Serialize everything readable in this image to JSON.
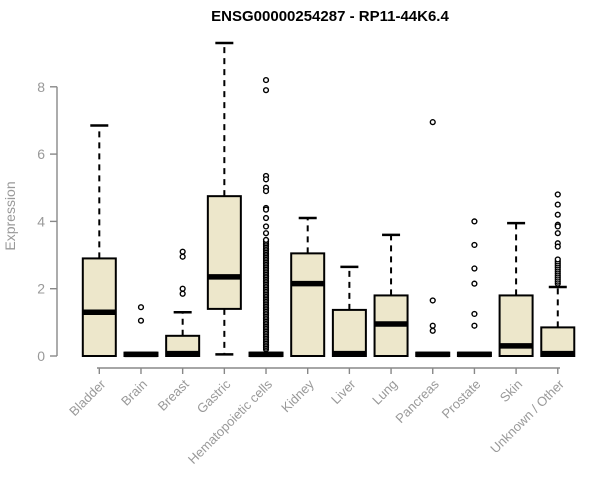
{
  "page": {
    "background": "#ffffff"
  },
  "chart_data": {
    "type": "boxplot",
    "title": "ENSG00000254287 - RP11-44K6.4",
    "ylabel": "Expression",
    "xlabel": "",
    "ylim": [
      0,
      9.4
    ],
    "yticks": [
      0,
      2,
      4,
      6,
      8
    ],
    "grid": false,
    "legend": null,
    "categories": [
      "Bladder",
      "Brain",
      "Breast",
      "Gastric",
      "Hematopoietic cells",
      "Kidney",
      "Liver",
      "Lung",
      "Pancreas",
      "Prostate",
      "Skin",
      "Unknown / Other"
    ],
    "boxes": [
      {
        "category": "Bladder",
        "whisker_low": 0,
        "q1": 0,
        "median": 1.3,
        "q3": 2.9,
        "whisker_high": 6.85,
        "outliers": [],
        "outlier_bands": []
      },
      {
        "category": "Brain",
        "whisker_low": 0,
        "q1": 0,
        "median": 0.05,
        "q3": 0.1,
        "whisker_high": 0.1,
        "outliers": [
          1.45,
          1.05
        ],
        "outlier_bands": []
      },
      {
        "category": "Breast",
        "whisker_low": 0,
        "q1": 0,
        "median": 0.07,
        "q3": 0.6,
        "whisker_high": 1.3,
        "outliers": [
          3.1,
          2.95,
          2.0,
          1.85
        ],
        "outlier_bands": []
      },
      {
        "category": "Gastric",
        "whisker_low": 0.05,
        "q1": 1.4,
        "median": 2.35,
        "q3": 4.75,
        "whisker_high": 9.3,
        "outliers": [],
        "outlier_bands": []
      },
      {
        "category": "Hematopoietic cells",
        "whisker_low": 0,
        "q1": 0,
        "median": 0.05,
        "q3": 0.1,
        "whisker_high": 0.15,
        "outliers": [
          8.2,
          7.9,
          5.35,
          5.25,
          5.0,
          4.9,
          4.4,
          4.35,
          4.1,
          3.85,
          3.65
        ],
        "outlier_bands": [
          {
            "from": 0.2,
            "to": 3.45,
            "step": 0.05
          }
        ]
      },
      {
        "category": "Kidney",
        "whisker_low": 0,
        "q1": 0,
        "median": 2.15,
        "q3": 3.05,
        "whisker_high": 4.1,
        "outliers": [],
        "outlier_bands": []
      },
      {
        "category": "Liver",
        "whisker_low": 0,
        "q1": 0,
        "median": 0.07,
        "q3": 1.37,
        "whisker_high": 2.65,
        "outliers": [],
        "outlier_bands": []
      },
      {
        "category": "Lung",
        "whisker_low": 0,
        "q1": 0,
        "median": 0.95,
        "q3": 1.8,
        "whisker_high": 3.6,
        "outliers": [],
        "outlier_bands": []
      },
      {
        "category": "Pancreas",
        "whisker_low": 0,
        "q1": 0,
        "median": 0.05,
        "q3": 0.1,
        "whisker_high": 0.1,
        "outliers": [
          6.95,
          1.65,
          0.9,
          0.75
        ],
        "outlier_bands": []
      },
      {
        "category": "Prostate",
        "whisker_low": 0,
        "q1": 0,
        "median": 0.05,
        "q3": 0.1,
        "whisker_high": 0.1,
        "outliers": [
          4.0,
          3.3,
          2.6,
          2.15,
          1.25,
          0.9
        ],
        "outlier_bands": []
      },
      {
        "category": "Skin",
        "whisker_low": 0,
        "q1": 0,
        "median": 0.3,
        "q3": 1.8,
        "whisker_high": 3.95,
        "outliers": [],
        "outlier_bands": []
      },
      {
        "category": "Unknown / Other",
        "whisker_low": 0,
        "q1": 0,
        "median": 0.07,
        "q3": 0.85,
        "whisker_high": 2.05,
        "outliers": [
          4.8,
          4.5,
          4.2,
          3.9,
          3.85,
          3.65,
          3.35,
          3.25
        ],
        "outlier_bands": [
          {
            "from": 2.15,
            "to": 2.9,
            "step": 0.06
          }
        ]
      }
    ],
    "colors": {
      "box_fill": "#EDE7CB",
      "box_stroke": "#000000",
      "median": "#000000",
      "whisker": "#000000",
      "outlier_stroke": "#000000",
      "outlier_fill": "#ffffff",
      "axis": "#888888",
      "tick_label": "#999999",
      "title": "#000000"
    }
  }
}
